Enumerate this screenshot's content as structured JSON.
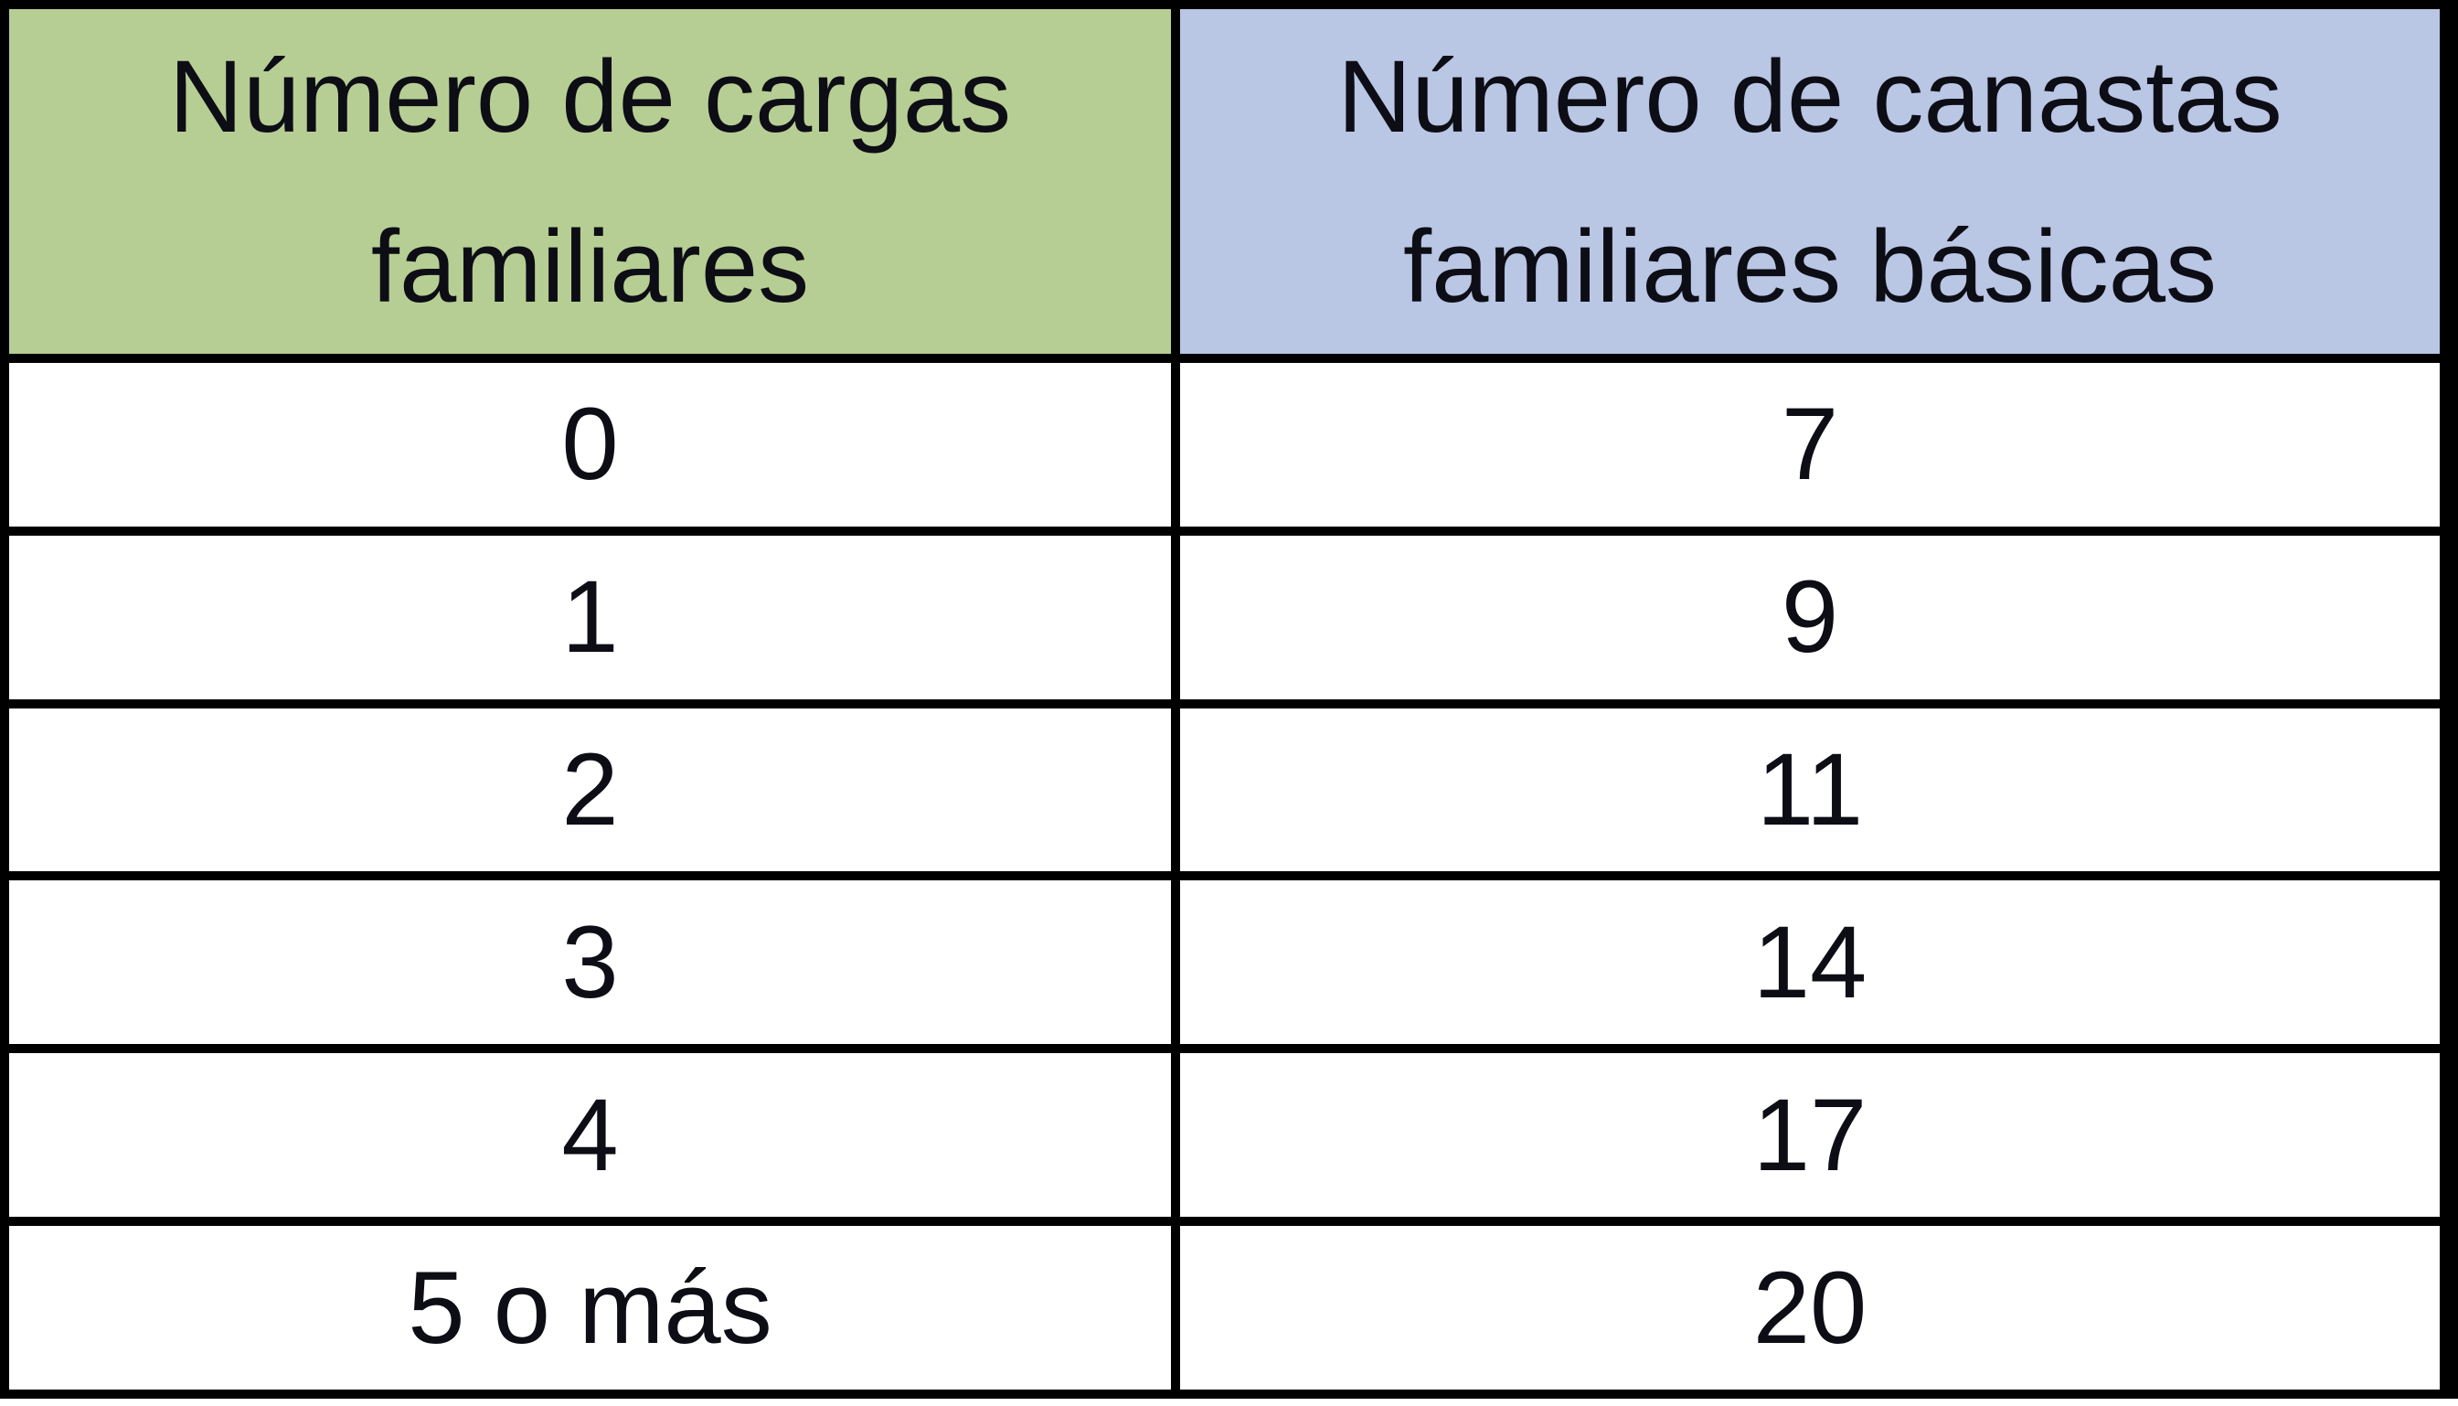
{
  "table": {
    "border_color": "#000000",
    "text_color": "#0d0d15",
    "columns": [
      {
        "key": "cargas",
        "header": "Número de cargas familiares",
        "header_lines": [
          "Número de cargas",
          "familiares"
        ],
        "bg": "#b6ce93"
      },
      {
        "key": "canastas",
        "header": "Número de canastas familiares básicas",
        "header_lines": [
          "Número de canastas",
          "familiares básicas"
        ],
        "bg": "#b9c6e4"
      }
    ],
    "rows": [
      {
        "cargas": "0",
        "canastas": "7"
      },
      {
        "cargas": "1",
        "canastas": "9"
      },
      {
        "cargas": "2",
        "canastas": "11"
      },
      {
        "cargas": "3",
        "canastas": "14"
      },
      {
        "cargas": "4",
        "canastas": "17"
      },
      {
        "cargas": "5 o más",
        "canastas": "20"
      }
    ]
  },
  "chart_data": {
    "type": "table",
    "columns": [
      "Número de cargas familiares",
      "Número de canastas familiares básicas"
    ],
    "rows": [
      [
        "0",
        "7"
      ],
      [
        "1",
        "9"
      ],
      [
        "2",
        "11"
      ],
      [
        "3",
        "14"
      ],
      [
        "4",
        "17"
      ],
      [
        "5 o más",
        "20"
      ]
    ],
    "header_bg_colors": [
      "#b6ce93",
      "#b9c6e4"
    ],
    "x_values_numeric": [
      0,
      1,
      2,
      3,
      4,
      5
    ],
    "y_values": [
      7,
      9,
      11,
      14,
      17,
      20
    ]
  }
}
